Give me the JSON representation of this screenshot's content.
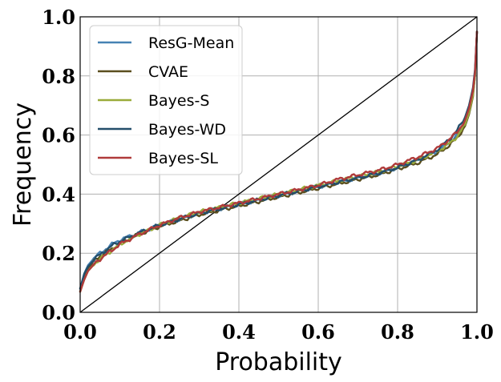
{
  "chart_data": {
    "type": "line",
    "title": "",
    "xlabel": "Probability",
    "ylabel": "Frequency",
    "xlim": [
      0.0,
      1.0
    ],
    "ylim": [
      0.0,
      1.0
    ],
    "xticks": [
      "0.0",
      "0.2",
      "0.4",
      "0.6",
      "0.8",
      "1.0"
    ],
    "yticks": [
      "0.0",
      "0.2",
      "0.4",
      "0.6",
      "0.8",
      "1.0"
    ],
    "grid": true,
    "legend_position": "top-left",
    "reference_line": {
      "name": "perfect-calibration",
      "x": [
        0.0,
        1.0
      ],
      "y": [
        0.0,
        1.0
      ],
      "color": "#000000"
    },
    "x": [
      0.0,
      0.01,
      0.02,
      0.04,
      0.06,
      0.08,
      0.1,
      0.15,
      0.2,
      0.25,
      0.3,
      0.35,
      0.4,
      0.45,
      0.5,
      0.55,
      0.6,
      0.65,
      0.7,
      0.75,
      0.8,
      0.85,
      0.9,
      0.93,
      0.95,
      0.97,
      0.98,
      0.99,
      0.995,
      1.0
    ],
    "series": [
      {
        "name": "ResG-Mean",
        "color": "#4682b4",
        "values": [
          0.08,
          0.13,
          0.16,
          0.19,
          0.21,
          0.23,
          0.245,
          0.27,
          0.295,
          0.315,
          0.335,
          0.35,
          0.365,
          0.38,
          0.395,
          0.41,
          0.425,
          0.44,
          0.455,
          0.47,
          0.49,
          0.515,
          0.545,
          0.575,
          0.6,
          0.64,
          0.68,
          0.74,
          0.8,
          0.95
        ]
      },
      {
        "name": "CVAE",
        "color": "#5a4e1e",
        "values": [
          0.07,
          0.12,
          0.15,
          0.18,
          0.2,
          0.215,
          0.235,
          0.265,
          0.29,
          0.31,
          0.33,
          0.345,
          0.36,
          0.375,
          0.39,
          0.405,
          0.42,
          0.435,
          0.45,
          0.465,
          0.485,
          0.505,
          0.535,
          0.565,
          0.59,
          0.63,
          0.67,
          0.73,
          0.8,
          0.95
        ]
      },
      {
        "name": "Bayes-S",
        "color": "#9aab3a",
        "values": [
          0.07,
          0.11,
          0.14,
          0.17,
          0.19,
          0.21,
          0.23,
          0.265,
          0.295,
          0.32,
          0.34,
          0.355,
          0.37,
          0.385,
          0.4,
          0.415,
          0.43,
          0.445,
          0.46,
          0.475,
          0.495,
          0.515,
          0.545,
          0.57,
          0.595,
          0.635,
          0.675,
          0.735,
          0.8,
          0.95
        ]
      },
      {
        "name": "Bayes-WD",
        "color": "#234e6b",
        "values": [
          0.08,
          0.13,
          0.155,
          0.185,
          0.205,
          0.225,
          0.24,
          0.27,
          0.295,
          0.315,
          0.335,
          0.35,
          0.365,
          0.38,
          0.395,
          0.41,
          0.425,
          0.44,
          0.455,
          0.47,
          0.49,
          0.515,
          0.55,
          0.585,
          0.615,
          0.66,
          0.7,
          0.76,
          0.82,
          0.95
        ]
      },
      {
        "name": "Bayes-SL",
        "color": "#b03a3a",
        "values": [
          0.07,
          0.11,
          0.14,
          0.17,
          0.19,
          0.21,
          0.23,
          0.265,
          0.295,
          0.32,
          0.34,
          0.355,
          0.37,
          0.385,
          0.4,
          0.415,
          0.43,
          0.45,
          0.465,
          0.48,
          0.5,
          0.525,
          0.555,
          0.585,
          0.61,
          0.65,
          0.69,
          0.75,
          0.81,
          0.95
        ]
      }
    ]
  }
}
